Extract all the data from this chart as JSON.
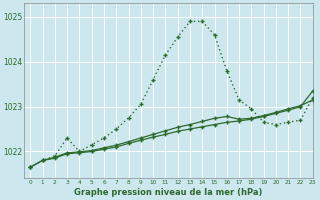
{
  "xlabel": "Graphe pression niveau de la mer (hPa)",
  "bg_color": "#cce8ee",
  "grid_color": "#ffffff",
  "line_color": "#2d6a2d",
  "xlim": [
    -0.5,
    23
  ],
  "ylim": [
    1021.4,
    1025.3
  ],
  "yticks": [
    1022,
    1023,
    1024,
    1025
  ],
  "xticks": [
    0,
    1,
    2,
    3,
    4,
    5,
    6,
    7,
    8,
    9,
    10,
    11,
    12,
    13,
    14,
    15,
    16,
    17,
    18,
    19,
    20,
    21,
    22,
    23
  ],
  "series1_x": [
    0,
    1,
    2,
    3,
    4,
    5,
    6,
    7,
    8,
    9,
    10,
    11,
    12,
    13,
    14,
    15,
    16,
    17,
    18,
    19,
    20,
    21,
    22,
    23
  ],
  "series1_y": [
    1021.65,
    1021.8,
    1021.9,
    1022.3,
    1022.0,
    1022.15,
    1022.3,
    1022.5,
    1022.75,
    1023.05,
    1023.6,
    1024.15,
    1024.55,
    1024.9,
    1024.9,
    1024.6,
    1023.8,
    1023.15,
    1022.95,
    1022.65,
    1022.6,
    1022.65,
    1022.7,
    1023.2
  ],
  "series2_x": [
    0,
    1,
    2,
    3,
    4,
    5,
    6,
    7,
    8,
    9,
    10,
    11,
    12,
    13,
    14,
    15,
    16,
    17,
    18,
    19,
    20,
    21,
    22,
    23
  ],
  "series2_y": [
    1021.65,
    1021.8,
    1021.85,
    1021.95,
    1021.97,
    1022.0,
    1022.05,
    1022.1,
    1022.18,
    1022.25,
    1022.32,
    1022.38,
    1022.45,
    1022.5,
    1022.55,
    1022.6,
    1022.65,
    1022.68,
    1022.72,
    1022.78,
    1022.85,
    1022.92,
    1023.0,
    1023.35
  ],
  "series3_x": [
    0,
    1,
    2,
    3,
    4,
    5,
    6,
    7,
    8,
    9,
    10,
    11,
    12,
    13,
    14,
    15,
    16,
    17,
    18,
    19,
    20,
    21,
    22,
    23
  ],
  "series3_y": [
    1021.65,
    1021.8,
    1021.87,
    1021.97,
    1021.99,
    1022.02,
    1022.08,
    1022.14,
    1022.22,
    1022.3,
    1022.38,
    1022.46,
    1022.54,
    1022.6,
    1022.67,
    1022.74,
    1022.78,
    1022.72,
    1022.74,
    1022.8,
    1022.87,
    1022.95,
    1023.02,
    1023.15
  ]
}
